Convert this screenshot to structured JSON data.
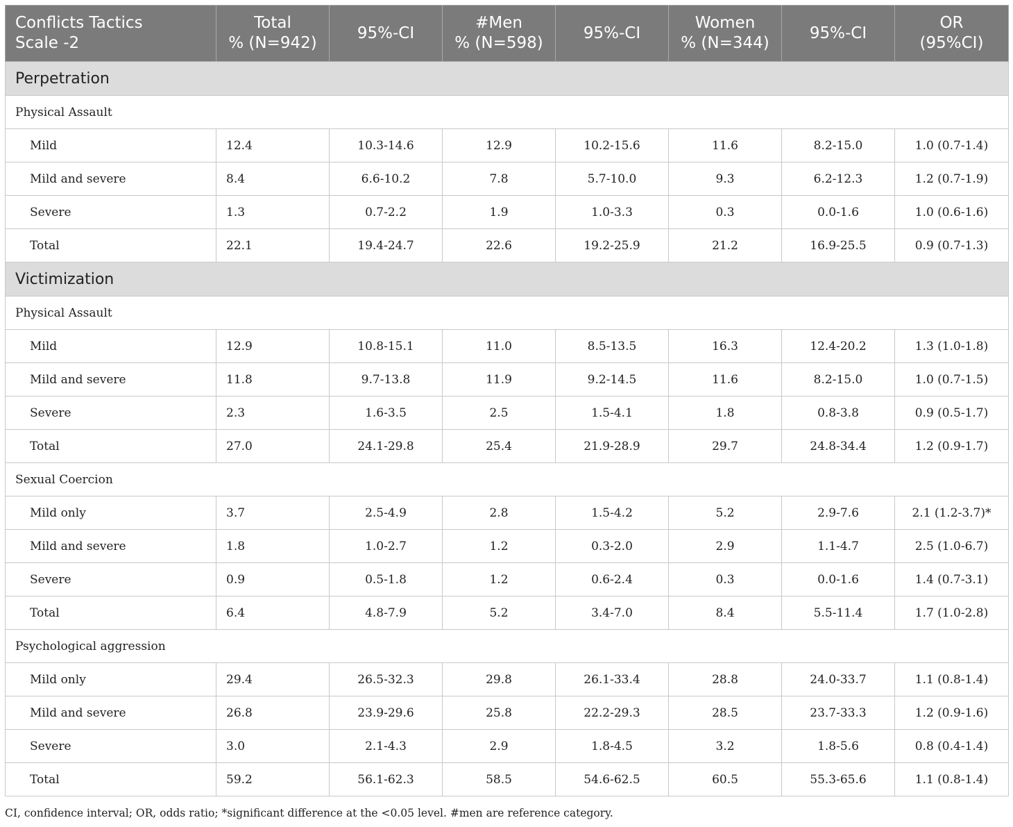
{
  "headers": [
    [
      "Conflicts Tactics",
      "Scale -2"
    ],
    [
      "Total",
      "% (N=942)"
    ],
    [
      "95%-CI"
    ],
    [
      "#Men",
      "% (N=598)"
    ],
    [
      "95%-CI"
    ],
    [
      "Women",
      "% (N=344)"
    ],
    [
      "95%-CI"
    ],
    [
      "OR",
      "(95%CI)"
    ]
  ],
  "rows": [
    {
      "kind": "section",
      "label": "Perpetration"
    },
    {
      "kind": "sub",
      "label": "Physical Assault"
    },
    {
      "kind": "data",
      "label": "Mild",
      "cells": [
        "12.4",
        "10.3-14.6",
        "12.9",
        "10.2-15.6",
        "11.6",
        "8.2-15.0",
        "1.0 (0.7-1.4)"
      ]
    },
    {
      "kind": "data",
      "label": "Mild and severe",
      "cells": [
        "8.4",
        "6.6-10.2",
        "7.8",
        "5.7-10.0",
        "9.3",
        "6.2-12.3",
        "1.2 (0.7-1.9)"
      ]
    },
    {
      "kind": "data",
      "label": "Severe",
      "cells": [
        "1.3",
        "0.7-2.2",
        "1.9",
        "1.0-3.3",
        "0.3",
        "0.0-1.6",
        "1.0 (0.6-1.6)"
      ]
    },
    {
      "kind": "data",
      "label": "Total",
      "cells": [
        "22.1",
        "19.4-24.7",
        "22.6",
        "19.2-25.9",
        "21.2",
        "16.9-25.5",
        "0.9 (0.7-1.3)"
      ]
    },
    {
      "kind": "section",
      "label": "Victimization"
    },
    {
      "kind": "sub",
      "label": "Physical Assault"
    },
    {
      "kind": "data",
      "label": "Mild",
      "cells": [
        "12.9",
        "10.8-15.1",
        "11.0",
        "8.5-13.5",
        "16.3",
        "12.4-20.2",
        "1.3 (1.0-1.8)"
      ]
    },
    {
      "kind": "data",
      "label": "Mild and severe",
      "cells": [
        "11.8",
        "9.7-13.8",
        "11.9",
        "9.2-14.5",
        "11.6",
        "8.2-15.0",
        "1.0 (0.7-1.5)"
      ]
    },
    {
      "kind": "data",
      "label": "Severe",
      "cells": [
        "2.3",
        "1.6-3.5",
        "2.5",
        "1.5-4.1",
        "1.8",
        "0.8-3.8",
        "0.9 (0.5-1.7)"
      ]
    },
    {
      "kind": "data",
      "label": "Total",
      "cells": [
        "27.0",
        "24.1-29.8",
        "25.4",
        "21.9-28.9",
        "29.7",
        "24.8-34.4",
        "1.2 (0.9-1.7)"
      ]
    },
    {
      "kind": "sub",
      "label": "Sexual Coercion"
    },
    {
      "kind": "data",
      "label": "Mild only",
      "cells": [
        "3.7",
        "2.5-4.9",
        "2.8",
        "1.5-4.2",
        "5.2",
        "2.9-7.6",
        "2.1 (1.2-3.7)*"
      ]
    },
    {
      "kind": "data",
      "label": "Mild and severe",
      "cells": [
        "1.8",
        "1.0-2.7",
        "1.2",
        "0.3-2.0",
        "2.9",
        "1.1-4.7",
        "2.5 (1.0-6.7)"
      ]
    },
    {
      "kind": "data",
      "label": "Severe",
      "cells": [
        "0.9",
        "0.5-1.8",
        "1.2",
        "0.6-2.4",
        "0.3",
        "0.0-1.6",
        "1.4 (0.7-3.1)"
      ]
    },
    {
      "kind": "data",
      "label": "Total",
      "cells": [
        "6.4",
        "4.8-7.9",
        "5.2",
        "3.4-7.0",
        "8.4",
        "5.5-11.4",
        "1.7 (1.0-2.8)"
      ]
    },
    {
      "kind": "sub",
      "label": "Psychological aggression"
    },
    {
      "kind": "data",
      "label": "Mild only",
      "cells": [
        "29.4",
        "26.5-32.3",
        "29.8",
        "26.1-33.4",
        "28.8",
        "24.0-33.7",
        "1.1 (0.8-1.4)"
      ]
    },
    {
      "kind": "data",
      "label": "Mild and severe",
      "cells": [
        "26.8",
        "23.9-29.6",
        "25.8",
        "22.2-29.3",
        "28.5",
        "23.7-33.3",
        "1.2 (0.9-1.6)"
      ]
    },
    {
      "kind": "data",
      "label": "Severe",
      "cells": [
        "3.0",
        "2.1-4.3",
        "2.9",
        "1.8-4.5",
        "3.2",
        "1.8-5.6",
        "0.8 (0.4-1.4)"
      ]
    },
    {
      "kind": "data",
      "label": "Total",
      "cells": [
        "59.2",
        "56.1-62.3",
        "58.5",
        "54.6-62.5",
        "60.5",
        "55.3-65.6",
        "1.1 (0.8-1.4)"
      ]
    }
  ],
  "footnote": "CI, confidence interval; OR, odds ratio; *significant difference at the <0.05 level. #men are reference category."
}
